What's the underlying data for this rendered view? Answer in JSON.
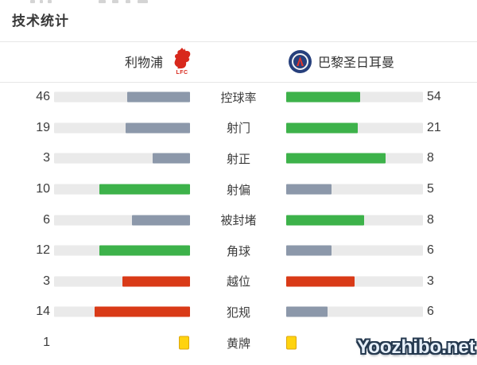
{
  "page_title": "技术统计",
  "teams": {
    "home": {
      "name": "利物浦",
      "logo_icon": "liverpool-liver-bird-icon",
      "logo_text": "LFC"
    },
    "away": {
      "name": "巴黎圣日耳曼",
      "logo_icon": "psg-crest-icon"
    }
  },
  "colors": {
    "green": "#3db24a",
    "gray": "#8c98aa",
    "red": "#d93a17",
    "track": "#eaeaea",
    "yellow_card": "#ffd30f",
    "lfc_red": "#d8281c",
    "psg_navy": "#27407c"
  },
  "stats": [
    {
      "label": "控球率",
      "home": 46,
      "away": 54,
      "home_color": "gray",
      "away_color": "green",
      "display": "bar"
    },
    {
      "label": "射门",
      "home": 19,
      "away": 21,
      "home_color": "gray",
      "away_color": "green",
      "display": "bar"
    },
    {
      "label": "射正",
      "home": 3,
      "away": 8,
      "home_color": "gray",
      "away_color": "green",
      "display": "bar"
    },
    {
      "label": "射偏",
      "home": 10,
      "away": 5,
      "home_color": "green",
      "away_color": "gray",
      "display": "bar"
    },
    {
      "label": "被封堵",
      "home": 6,
      "away": 8,
      "home_color": "gray",
      "away_color": "green",
      "display": "bar"
    },
    {
      "label": "角球",
      "home": 12,
      "away": 6,
      "home_color": "green",
      "away_color": "gray",
      "display": "bar"
    },
    {
      "label": "越位",
      "home": 3,
      "away": 3,
      "home_color": "red",
      "away_color": "red",
      "display": "bar"
    },
    {
      "label": "犯规",
      "home": 14,
      "away": 6,
      "home_color": "red",
      "away_color": "gray",
      "display": "bar"
    },
    {
      "label": "黄牌",
      "home": 1,
      "away": 1,
      "display": "card"
    }
  ],
  "watermark": {
    "text": "Yoozhibo.net"
  },
  "chart_data": {
    "type": "bar",
    "orientation": "horizontal-paired",
    "title": "技术统计",
    "categories": [
      "控球率",
      "射门",
      "射正",
      "射偏",
      "被封堵",
      "角球",
      "越位",
      "犯规",
      "黄牌"
    ],
    "series": [
      {
        "name": "利物浦",
        "values": [
          46,
          19,
          3,
          10,
          6,
          12,
          3,
          14,
          1
        ]
      },
      {
        "name": "巴黎圣日耳曼",
        "values": [
          54,
          21,
          8,
          5,
          8,
          6,
          3,
          6,
          1
        ]
      }
    ],
    "value_encoding": "bar fill width = value / (home+away) share of track",
    "legend_position": "none",
    "grid": false
  }
}
